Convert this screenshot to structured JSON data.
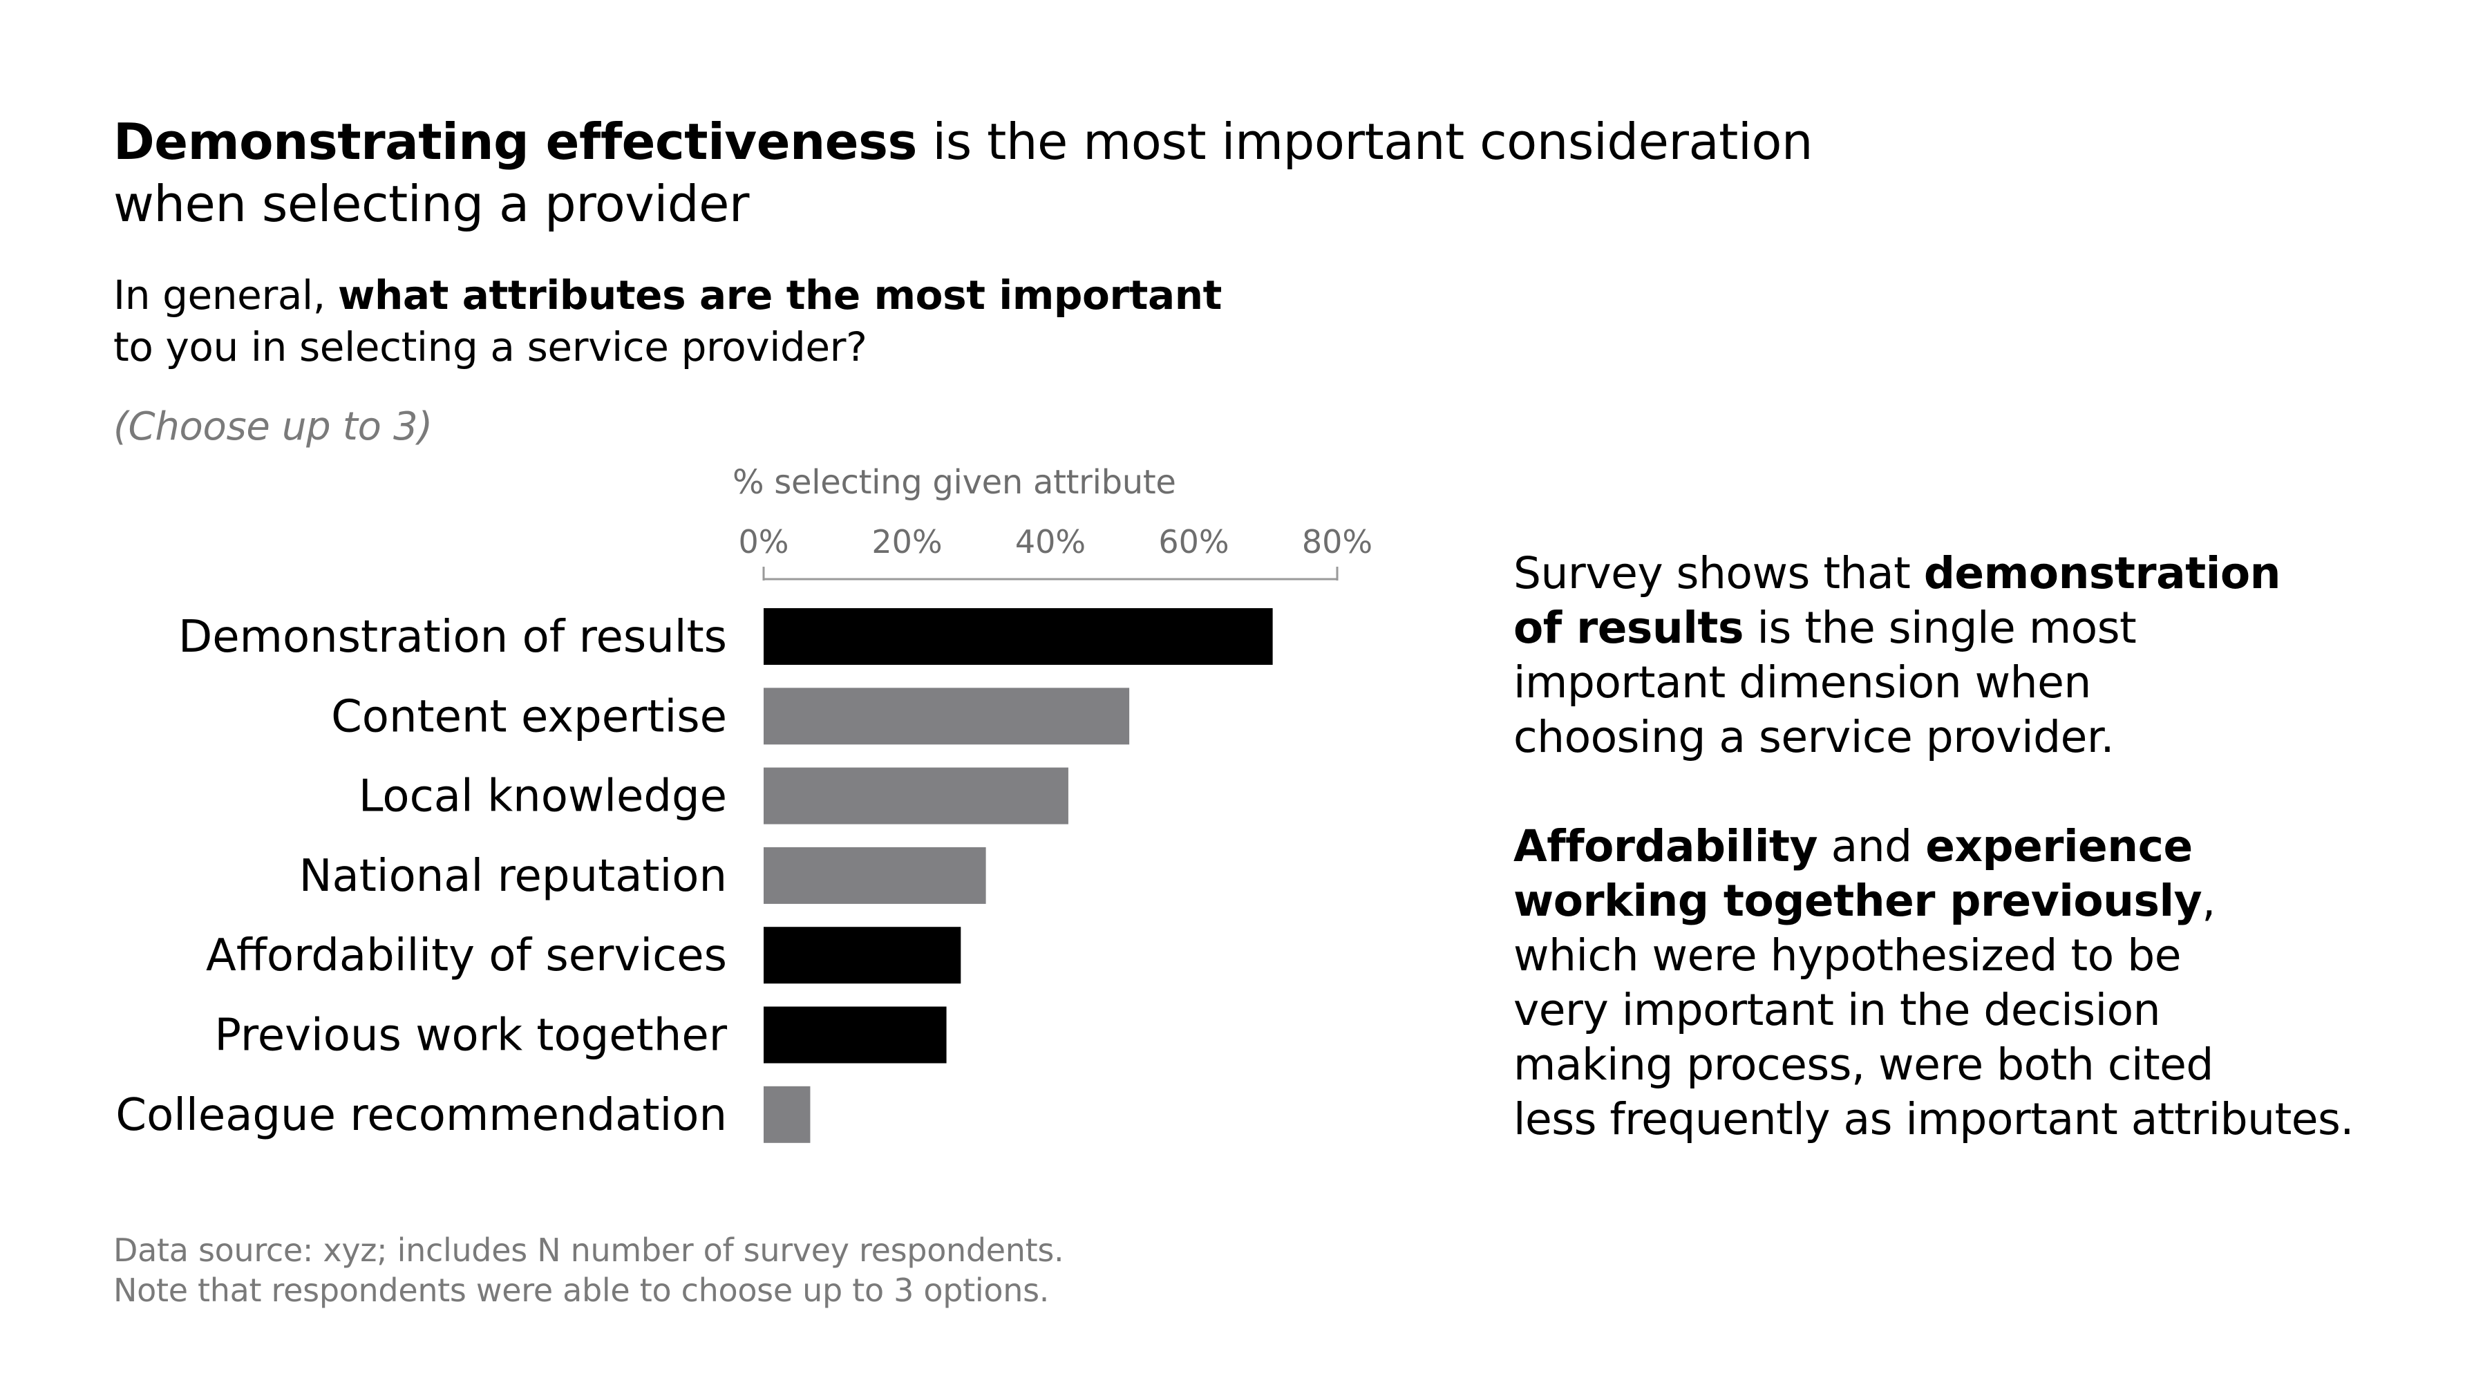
{
  "headline": {
    "bold": "Demonstrating effectiveness",
    "rest_line1": " is the most important consideration",
    "line2": "when selecting a provider"
  },
  "question": {
    "prefix": "In general, ",
    "bold": "what attributes are the most important",
    "line2": "to you in selecting a service provider?"
  },
  "instruction": "(Choose up to 3)",
  "insight": {
    "p1_prefix": "Survey shows that ",
    "p1_bold1": "demonstration",
    "p1_bold2": "of results",
    "p1_rest": " is the single most",
    "p1_line3": "important dimension when",
    "p1_line4": "choosing a service provider.",
    "p2_bold1": "Affordability",
    "p2_and": " and ",
    "p2_bold2": "experience",
    "p2_bold3": "working together previously",
    "p2_comma": ",",
    "p2_line3": "which were hypothesized to be",
    "p2_line4": "very important in the decision",
    "p2_line5": "making process, were both cited",
    "p2_line6": "less frequently as important attributes."
  },
  "footnote": {
    "line1": "Data source: xyz; includes N number of survey respondents.",
    "line2": "Note that respondents were able to choose up to 3 options."
  },
  "colors": {
    "highlight": "#000000",
    "default": "#808083",
    "axis": "#9a9a9a"
  },
  "chart_data": {
    "type": "bar",
    "orientation": "horizontal",
    "xlabel": "% selecting given attribute",
    "xlim": [
      0,
      80
    ],
    "xticks": [
      0,
      20,
      40,
      60,
      80
    ],
    "xtick_labels": [
      "0%",
      "20%",
      "40%",
      "60%",
      "80%"
    ],
    "categories": [
      "Demonstration of results",
      "Content expertise",
      "Local knowledge",
      "National reputation",
      "Affordability of services",
      "Previous work together",
      "Colleague recommendation"
    ],
    "values": [
      71,
      51,
      42.5,
      31,
      27.5,
      25.5,
      6.5
    ],
    "highlighted": [
      true,
      false,
      false,
      false,
      true,
      true,
      false
    ],
    "grid": false
  }
}
